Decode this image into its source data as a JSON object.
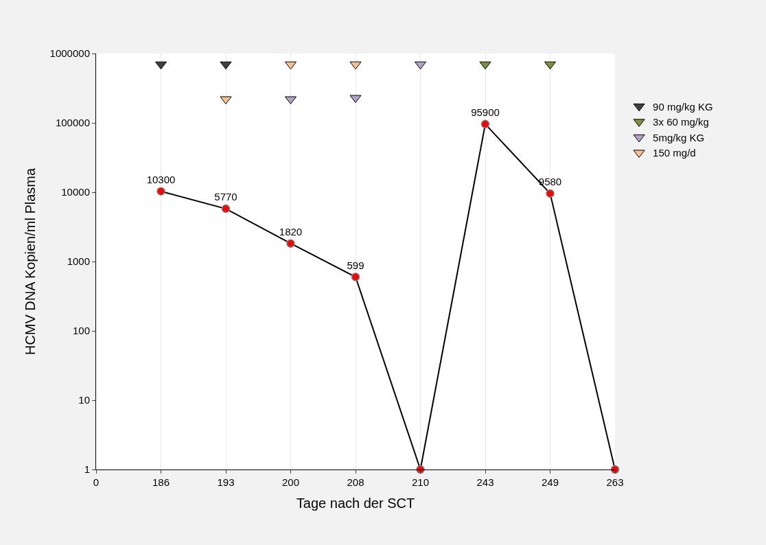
{
  "chart_data": {
    "type": "line",
    "xlabel": "Tage nach der SCT",
    "ylabel": "HCMV DNA Kopien/ml Plasma",
    "categories": [
      "0",
      "186",
      "193",
      "200",
      "208",
      "210",
      "243",
      "249",
      "263"
    ],
    "log": "y",
    "ylim": [
      1,
      1000000
    ],
    "yticks": [
      1,
      10,
      100,
      1000,
      10000,
      100000,
      1000000
    ],
    "grid": "x",
    "legend": "right",
    "series": [
      {
        "color": "#000000",
        "marker": "circle",
        "values": [
          null,
          10300,
          5770,
          1820,
          599,
          1,
          95900,
          9580,
          1
        ],
        "value_labels": [
          null,
          "10300",
          "5770",
          "1820",
          "599",
          null,
          "95900",
          "9580",
          null
        ]
      },
      {
        "type": "scatter",
        "name": "90 mg/kg KG",
        "color": "#404040",
        "marker": "triangle",
        "values": [
          null,
          700000,
          700000,
          null,
          null,
          null,
          null,
          null,
          null
        ]
      },
      {
        "type": "scatter",
        "name": "3x 60 mg/kg",
        "color": "#77933c",
        "marker": "triangle",
        "values": [
          null,
          null,
          null,
          null,
          null,
          null,
          700000,
          700000,
          null
        ]
      },
      {
        "type": "scatter",
        "name": "5mg/kg KG",
        "color": "#b3a2c7",
        "marker": "triangle",
        "values": [
          null,
          null,
          null,
          220000,
          230000,
          700000,
          null,
          null,
          null
        ]
      },
      {
        "type": "scatter",
        "name": "150 mg/d",
        "color": "#fac090",
        "marker": "triangle",
        "values": [
          null,
          null,
          220000,
          700000,
          700000,
          null,
          null,
          null,
          null
        ]
      }
    ]
  }
}
